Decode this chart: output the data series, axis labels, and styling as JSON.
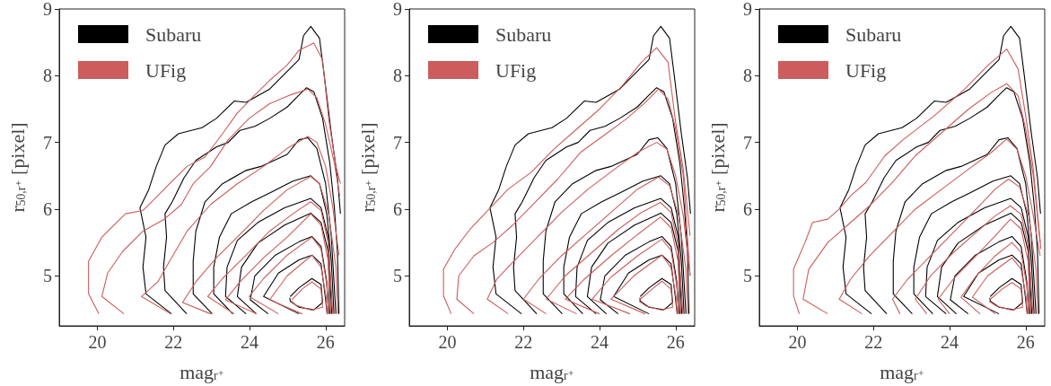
{
  "chart_data": [
    {
      "type": "line",
      "xlabel": "mag$_{r⁺}$",
      "ylabel": "r$_{50,r⁺}$ [pixel]",
      "xlim": [
        19,
        26.5
      ],
      "ylim": [
        4.25,
        9
      ],
      "xticks": [
        20,
        22,
        24,
        26
      ],
      "yticks": [
        5,
        6,
        7,
        8,
        9
      ],
      "grid": false,
      "legend": "top left",
      "series": [
        {
          "type": "line",
          "name": "Subaru",
          "color": "#000000",
          "x": [
            21.95,
            21.28,
            21.2,
            21.28,
            21.12,
            21.35,
            21.55,
            21.78,
            22.13,
            22.75,
            23.13,
            23.6,
            23.91,
            24.53,
            24.91,
            25.3,
            25.42,
            25.61,
            25.84,
            25.96,
            26.15,
            26.31,
            26.39
          ],
          "values": [
            4.43,
            4.73,
            5.13,
            5.58,
            6.02,
            6.29,
            6.64,
            6.96,
            7.13,
            7.22,
            7.36,
            7.62,
            7.6,
            7.8,
            8.02,
            8.24,
            8.6,
            8.74,
            8.56,
            8.02,
            7.13,
            6.47,
            5.93
          ]
        },
        {
          "type": "line",
          "color": "#000000",
          "x": [
            22.35,
            21.78,
            21.74,
            21.82,
            21.78,
            21.97,
            22.28,
            22.59,
            23.13,
            23.44,
            23.75,
            24.14,
            24.53,
            24.99,
            25.3,
            25.5,
            25.69,
            25.92,
            26.11,
            26.23,
            26.31,
            26.35
          ],
          "values": [
            4.43,
            4.78,
            5.13,
            5.58,
            5.93,
            6.11,
            6.47,
            6.73,
            6.93,
            7.0,
            7.18,
            7.24,
            7.36,
            7.53,
            7.71,
            7.82,
            7.76,
            7.36,
            6.69,
            6.02,
            5.36,
            4.43
          ]
        },
        {
          "type": "line",
          "color": "#000000",
          "x": [
            23.02,
            22.52,
            22.52,
            22.59,
            22.83,
            23.29,
            23.91,
            24.3,
            24.99,
            25.3,
            25.53,
            25.77,
            26.0,
            26.15,
            26.27
          ],
          "values": [
            4.43,
            4.73,
            5.22,
            5.67,
            6.11,
            6.38,
            6.58,
            6.64,
            6.82,
            7.04,
            7.07,
            6.91,
            6.38,
            5.58,
            4.43
          ]
        },
        {
          "type": "line",
          "color": "#000000",
          "x": [
            23.56,
            23.06,
            23.06,
            23.21,
            23.52,
            24.06,
            24.53,
            25.14,
            25.61,
            25.84,
            26.03,
            26.15,
            26.22
          ],
          "values": [
            4.43,
            4.73,
            5.13,
            5.58,
            5.93,
            6.11,
            6.24,
            6.42,
            6.5,
            6.38,
            5.93,
            5.22,
            4.43
          ]
        },
        {
          "type": "line",
          "color": "#000000",
          "x": [
            23.91,
            23.37,
            23.41,
            23.68,
            24.22,
            24.92,
            25.61,
            25.88,
            26.07,
            26.16
          ],
          "values": [
            4.43,
            4.69,
            5.13,
            5.53,
            5.8,
            6.02,
            6.16,
            6.02,
            5.58,
            4.43
          ]
        },
        {
          "type": "line",
          "color": "#000000",
          "x": [
            24.18,
            23.68,
            23.79,
            24.22,
            24.92,
            25.61,
            25.88,
            26.07,
            26.11
          ],
          "values": [
            4.43,
            4.69,
            5.13,
            5.49,
            5.76,
            5.94,
            5.8,
            5.36,
            4.43
          ]
        },
        {
          "type": "line",
          "color": "#000000",
          "x": [
            24.49,
            24.02,
            24.14,
            24.68,
            25.3,
            25.64,
            25.88,
            26.03,
            26.08
          ],
          "values": [
            4.43,
            4.64,
            5.0,
            5.31,
            5.51,
            5.59,
            5.44,
            4.91,
            4.43
          ]
        },
        {
          "type": "line",
          "color": "#000000",
          "x": [
            25.3,
            24.37,
            24.76,
            25.3,
            25.64,
            25.88,
            25.99,
            26.04
          ],
          "values": [
            4.43,
            4.69,
            5.04,
            5.24,
            5.31,
            5.18,
            4.69,
            4.43
          ]
        },
        {
          "type": "line",
          "color": "#000000",
          "x": [
            25.07,
            25.3,
            25.64,
            25.88,
            25.92,
            25.69,
            25.3,
            25.07,
            25.06
          ],
          "values": [
            4.69,
            4.82,
            4.96,
            4.87,
            4.6,
            4.49,
            4.53,
            4.62,
            4.67
          ]
        },
        {
          "type": "line",
          "name": "UFig",
          "color": "#cd5c5c",
          "x": [
            20.04,
            19.77,
            19.77,
            20.12,
            20.58,
            20.74,
            21.2,
            21.43,
            21.9,
            22.36,
            22.83,
            23.29,
            23.68,
            24.14,
            24.53,
            24.99,
            25.3,
            25.69,
            25.92,
            26.08,
            26.27,
            26.39
          ],
          "values": [
            4.43,
            4.73,
            5.22,
            5.58,
            5.84,
            5.93,
            5.98,
            6.11,
            6.38,
            6.64,
            6.78,
            7.13,
            7.44,
            7.71,
            7.93,
            8.16,
            8.38,
            8.49,
            8.24,
            7.36,
            6.64,
            6.38
          ]
        },
        {
          "type": "line",
          "color": "#cd5c5c",
          "x": [
            20.7,
            20.12,
            20.27,
            20.66,
            21.2,
            21.74,
            22.21,
            22.52,
            22.98,
            23.44,
            23.99,
            24.53,
            25.07,
            25.53,
            25.77,
            26.0,
            26.23,
            26.37
          ],
          "values": [
            4.43,
            4.69,
            5.04,
            5.36,
            5.67,
            5.84,
            6.07,
            6.38,
            6.64,
            7.04,
            7.36,
            7.58,
            7.71,
            7.8,
            7.67,
            7.27,
            6.69,
            6.2
          ]
        },
        {
          "type": "line",
          "color": "#cd5c5c",
          "x": [
            21.93,
            21.16,
            21.59,
            21.9,
            22.36,
            22.98,
            23.68,
            24.37,
            24.99,
            25.53,
            25.77,
            26.0,
            26.19,
            26.35
          ],
          "values": [
            4.43,
            4.69,
            4.91,
            5.22,
            5.67,
            6.07,
            6.38,
            6.64,
            6.91,
            7.09,
            7.0,
            6.64,
            6.02,
            5.31
          ]
        },
        {
          "type": "line",
          "color": "#cd5c5c",
          "x": [
            22.98,
            22.24,
            22.59,
            23.13,
            23.75,
            24.37,
            24.99,
            25.61,
            25.84,
            26.08,
            26.27,
            26.32
          ],
          "values": [
            4.43,
            4.6,
            4.91,
            5.27,
            5.62,
            5.98,
            6.29,
            6.49,
            6.38,
            5.93,
            5.13,
            4.43
          ]
        },
        {
          "type": "line",
          "color": "#cd5c5c",
          "x": [
            23.6,
            22.9,
            23.29,
            23.91,
            24.53,
            25.14,
            25.61,
            25.88,
            26.07,
            26.19
          ],
          "values": [
            4.43,
            4.69,
            4.96,
            5.31,
            5.67,
            5.93,
            6.11,
            5.98,
            5.49,
            4.43
          ]
        },
        {
          "type": "line",
          "color": "#cd5c5c",
          "x": [
            24.18,
            23.37,
            23.75,
            24.37,
            24.99,
            25.61,
            25.88,
            26.07,
            26.13
          ],
          "values": [
            4.43,
            4.64,
            4.91,
            5.27,
            5.58,
            5.93,
            5.76,
            5.22,
            4.43
          ]
        },
        {
          "type": "line",
          "color": "#cd5c5c",
          "x": [
            24.76,
            23.99,
            24.37,
            24.99,
            25.64,
            25.88,
            26.03,
            26.08
          ],
          "values": [
            4.43,
            4.69,
            4.96,
            5.31,
            5.58,
            5.4,
            4.87,
            4.43
          ]
        },
        {
          "type": "line",
          "color": "#cd5c5c",
          "x": [
            25.38,
            24.53,
            24.99,
            25.64,
            25.88,
            26.01,
            26.04
          ],
          "values": [
            4.43,
            4.64,
            5.0,
            5.31,
            5.13,
            4.69,
            4.43
          ]
        },
        {
          "type": "line",
          "color": "#cd5c5c",
          "x": [
            25.11,
            25.38,
            25.64,
            25.88,
            25.92,
            25.61,
            25.22,
            25.1
          ],
          "values": [
            4.64,
            4.8,
            4.91,
            4.8,
            4.53,
            4.49,
            4.56,
            4.62
          ]
        }
      ]
    },
    {
      "type": "line",
      "xlabel": "mag$_{r⁺}$",
      "ylabel": "r$_{50,r⁺}$ [pixel]",
      "xlim": [
        19,
        26.5
      ],
      "ylim": [
        4.25,
        9
      ],
      "xticks": [
        20,
        22,
        24,
        26
      ],
      "yticks": [
        5,
        6,
        7,
        8,
        9
      ],
      "grid": false,
      "legend": "top left",
      "series": [
        {
          "type": "line",
          "name": "Subaru",
          "color": "#000000",
          "x": [
            21.95,
            21.28,
            21.2,
            21.28,
            21.12,
            21.35,
            21.55,
            21.78,
            22.13,
            22.75,
            23.13,
            23.6,
            23.91,
            24.53,
            24.91,
            25.3,
            25.42,
            25.61,
            25.84,
            25.96,
            26.15,
            26.31,
            26.39
          ],
          "values": [
            4.43,
            4.73,
            5.13,
            5.58,
            6.02,
            6.29,
            6.64,
            6.96,
            7.13,
            7.22,
            7.36,
            7.62,
            7.6,
            7.8,
            8.02,
            8.24,
            8.6,
            8.74,
            8.56,
            8.02,
            7.13,
            6.47,
            5.93
          ]
        },
        {
          "type": "line",
          "color": "#000000",
          "x": [
            22.35,
            21.78,
            21.74,
            21.82,
            21.78,
            21.97,
            22.28,
            22.59,
            23.13,
            23.44,
            23.75,
            24.14,
            24.53,
            24.99,
            25.3,
            25.5,
            25.69,
            25.92,
            26.11,
            26.23,
            26.31,
            26.35
          ],
          "values": [
            4.43,
            4.78,
            5.13,
            5.58,
            5.93,
            6.11,
            6.47,
            6.73,
            6.93,
            7.0,
            7.18,
            7.24,
            7.36,
            7.53,
            7.71,
            7.82,
            7.76,
            7.36,
            6.69,
            6.02,
            5.36,
            4.43
          ]
        },
        {
          "type": "line",
          "color": "#000000",
          "x": [
            23.02,
            22.52,
            22.52,
            22.59,
            22.83,
            23.29,
            23.91,
            24.3,
            24.99,
            25.3,
            25.53,
            25.77,
            26.0,
            26.15,
            26.27
          ],
          "values": [
            4.43,
            4.73,
            5.22,
            5.67,
            6.11,
            6.38,
            6.58,
            6.64,
            6.82,
            7.04,
            7.07,
            6.91,
            6.38,
            5.58,
            4.43
          ]
        },
        {
          "type": "line",
          "color": "#000000",
          "x": [
            23.56,
            23.06,
            23.06,
            23.21,
            23.52,
            24.06,
            24.53,
            25.14,
            25.61,
            25.84,
            26.03,
            26.15,
            26.22
          ],
          "values": [
            4.43,
            4.73,
            5.13,
            5.58,
            5.93,
            6.11,
            6.24,
            6.42,
            6.5,
            6.38,
            5.93,
            5.22,
            4.43
          ]
        },
        {
          "type": "line",
          "color": "#000000",
          "x": [
            23.91,
            23.37,
            23.41,
            23.68,
            24.22,
            24.92,
            25.61,
            25.88,
            26.07,
            26.16
          ],
          "values": [
            4.43,
            4.69,
            5.13,
            5.53,
            5.8,
            6.02,
            6.16,
            6.02,
            5.58,
            4.43
          ]
        },
        {
          "type": "line",
          "color": "#000000",
          "x": [
            24.18,
            23.68,
            23.79,
            24.22,
            24.92,
            25.61,
            25.88,
            26.07,
            26.11
          ],
          "values": [
            4.43,
            4.69,
            5.13,
            5.49,
            5.76,
            5.94,
            5.8,
            5.36,
            4.43
          ]
        },
        {
          "type": "line",
          "color": "#000000",
          "x": [
            24.49,
            24.02,
            24.14,
            24.68,
            25.3,
            25.64,
            25.88,
            26.03,
            26.08
          ],
          "values": [
            4.43,
            4.64,
            5.0,
            5.31,
            5.51,
            5.59,
            5.44,
            4.91,
            4.43
          ]
        },
        {
          "type": "line",
          "color": "#000000",
          "x": [
            25.3,
            24.37,
            24.76,
            25.3,
            25.64,
            25.88,
            25.99,
            26.04
          ],
          "values": [
            4.43,
            4.69,
            5.04,
            5.24,
            5.31,
            5.18,
            4.69,
            4.43
          ]
        },
        {
          "type": "line",
          "color": "#000000",
          "x": [
            25.07,
            25.3,
            25.64,
            25.88,
            25.92,
            25.69,
            25.3,
            25.07,
            25.06
          ],
          "values": [
            4.69,
            4.82,
            4.96,
            4.87,
            4.6,
            4.49,
            4.53,
            4.62,
            4.67
          ]
        },
        {
          "type": "line",
          "name": "UFig",
          "color": "#cd5c5c",
          "x": [
            20.1,
            19.9,
            19.9,
            20.2,
            20.6,
            21.1,
            21.6,
            22.2,
            22.8,
            23.4,
            24.0,
            24.6,
            25.1,
            25.5,
            25.8,
            26.0,
            26.2,
            26.38
          ],
          "values": [
            4.43,
            4.7,
            5.1,
            5.4,
            5.7,
            6.0,
            6.3,
            6.55,
            6.9,
            7.2,
            7.5,
            7.85,
            8.2,
            8.42,
            8.2,
            7.3,
            6.6,
            5.6
          ]
        },
        {
          "type": "line",
          "color": "#cd5c5c",
          "x": [
            20.7,
            20.25,
            20.3,
            20.7,
            21.2,
            21.7,
            22.3,
            22.9,
            23.5,
            24.1,
            24.7,
            25.2,
            25.55,
            25.8,
            26.0,
            26.2,
            26.38
          ],
          "values": [
            4.43,
            4.65,
            5.0,
            5.3,
            5.5,
            5.75,
            6.1,
            6.45,
            6.85,
            7.1,
            7.35,
            7.6,
            7.8,
            7.65,
            7.2,
            6.5,
            5.0
          ]
        },
        {
          "type": "line",
          "color": "#cd5c5c",
          "x": [
            21.6,
            21.05,
            21.3,
            21.8,
            22.4,
            23.0,
            23.7,
            24.4,
            25.0,
            25.5,
            25.77,
            26.0,
            26.2,
            26.38
          ],
          "values": [
            4.43,
            4.65,
            4.95,
            5.25,
            5.6,
            5.95,
            6.3,
            6.6,
            6.85,
            7.0,
            6.9,
            6.5,
            5.9,
            5.0
          ]
        },
        {
          "type": "line",
          "color": "#cd5c5c",
          "x": [
            22.6,
            22.0,
            22.4,
            23.0,
            23.7,
            24.4,
            25.0,
            25.55,
            25.84,
            26.08,
            26.27,
            26.32
          ],
          "values": [
            4.43,
            4.65,
            4.95,
            5.3,
            5.65,
            6.0,
            6.3,
            6.48,
            6.35,
            5.9,
            5.1,
            4.43
          ]
        },
        {
          "type": "line",
          "color": "#cd5c5c",
          "x": [
            23.4,
            22.6,
            23.1,
            23.8,
            24.5,
            25.1,
            25.6,
            25.88,
            26.07,
            26.19
          ],
          "values": [
            4.43,
            4.65,
            5.0,
            5.35,
            5.7,
            5.95,
            6.1,
            5.95,
            5.45,
            4.43
          ]
        },
        {
          "type": "line",
          "color": "#cd5c5c",
          "x": [
            24.0,
            23.1,
            23.6,
            24.3,
            25.0,
            25.6,
            25.88,
            26.07,
            26.13
          ],
          "values": [
            4.43,
            4.65,
            4.95,
            5.3,
            5.62,
            5.88,
            5.72,
            5.2,
            4.43
          ]
        },
        {
          "type": "line",
          "color": "#cd5c5c",
          "x": [
            24.8,
            23.8,
            24.3,
            25.0,
            25.64,
            25.88,
            26.03,
            26.08
          ],
          "values": [
            4.43,
            4.65,
            4.98,
            5.3,
            5.55,
            5.38,
            4.85,
            4.43
          ]
        },
        {
          "type": "line",
          "color": "#cd5c5c",
          "x": [
            25.2,
            24.3,
            24.9,
            25.64,
            25.88,
            26.01,
            26.04
          ],
          "values": [
            4.43,
            4.65,
            5.0,
            5.31,
            5.12,
            4.68,
            4.43
          ]
        },
        {
          "type": "line",
          "color": "#cd5c5c",
          "x": [
            25.05,
            25.38,
            25.64,
            25.88,
            25.92,
            25.61,
            25.22,
            25.04
          ],
          "values": [
            4.64,
            4.8,
            4.92,
            4.8,
            4.53,
            4.49,
            4.55,
            4.62
          ]
        }
      ]
    },
    {
      "type": "line",
      "xlabel": "mag$_{r⁺}$",
      "ylabel": "r$_{50,r⁺}$ [pixel]",
      "xlim": [
        19,
        26.5
      ],
      "ylim": [
        4.25,
        9
      ],
      "xticks": [
        20,
        22,
        24,
        26
      ],
      "yticks": [
        5,
        6,
        7,
        8,
        9
      ],
      "grid": false,
      "legend": "top left",
      "series": [
        {
          "type": "line",
          "name": "Subaru",
          "color": "#000000",
          "x": [
            21.95,
            21.28,
            21.2,
            21.28,
            21.12,
            21.35,
            21.55,
            21.78,
            22.13,
            22.75,
            23.13,
            23.6,
            23.91,
            24.53,
            24.91,
            25.3,
            25.42,
            25.61,
            25.84,
            25.96,
            26.15,
            26.31,
            26.39
          ],
          "values": [
            4.43,
            4.73,
            5.13,
            5.58,
            6.02,
            6.29,
            6.64,
            6.96,
            7.13,
            7.22,
            7.36,
            7.62,
            7.6,
            7.8,
            8.02,
            8.24,
            8.6,
            8.74,
            8.56,
            8.02,
            7.13,
            6.47,
            5.93
          ]
        },
        {
          "type": "line",
          "color": "#000000",
          "x": [
            22.35,
            21.78,
            21.74,
            21.82,
            21.78,
            21.97,
            22.28,
            22.59,
            23.13,
            23.44,
            23.75,
            24.14,
            24.53,
            24.99,
            25.3,
            25.5,
            25.69,
            25.92,
            26.11,
            26.23,
            26.31,
            26.35
          ],
          "values": [
            4.43,
            4.78,
            5.13,
            5.58,
            5.93,
            6.11,
            6.47,
            6.73,
            6.93,
            7.0,
            7.18,
            7.24,
            7.36,
            7.53,
            7.71,
            7.82,
            7.76,
            7.36,
            6.69,
            6.02,
            5.36,
            4.43
          ]
        },
        {
          "type": "line",
          "color": "#000000",
          "x": [
            23.02,
            22.52,
            22.52,
            22.59,
            22.83,
            23.29,
            23.91,
            24.3,
            24.99,
            25.3,
            25.53,
            25.77,
            26.0,
            26.15,
            26.27
          ],
          "values": [
            4.43,
            4.73,
            5.22,
            5.67,
            6.11,
            6.38,
            6.58,
            6.64,
            6.82,
            7.04,
            7.07,
            6.91,
            6.38,
            5.58,
            4.43
          ]
        },
        {
          "type": "line",
          "color": "#000000",
          "x": [
            23.56,
            23.06,
            23.06,
            23.21,
            23.52,
            24.06,
            24.53,
            25.14,
            25.61,
            25.84,
            26.03,
            26.15,
            26.22
          ],
          "values": [
            4.43,
            4.73,
            5.13,
            5.58,
            5.93,
            6.11,
            6.24,
            6.42,
            6.5,
            6.38,
            5.93,
            5.22,
            4.43
          ]
        },
        {
          "type": "line",
          "color": "#000000",
          "x": [
            23.91,
            23.37,
            23.41,
            23.68,
            24.22,
            24.92,
            25.61,
            25.88,
            26.07,
            26.16
          ],
          "values": [
            4.43,
            4.69,
            5.13,
            5.53,
            5.8,
            6.02,
            6.16,
            6.02,
            5.58,
            4.43
          ]
        },
        {
          "type": "line",
          "color": "#000000",
          "x": [
            24.18,
            23.68,
            23.79,
            24.22,
            24.92,
            25.61,
            25.88,
            26.07,
            26.11
          ],
          "values": [
            4.43,
            4.69,
            5.13,
            5.49,
            5.76,
            5.94,
            5.8,
            5.36,
            4.43
          ]
        },
        {
          "type": "line",
          "color": "#000000",
          "x": [
            24.49,
            24.02,
            24.14,
            24.68,
            25.3,
            25.64,
            25.88,
            26.03,
            26.08
          ],
          "values": [
            4.43,
            4.64,
            5.0,
            5.31,
            5.51,
            5.59,
            5.44,
            4.91,
            4.43
          ]
        },
        {
          "type": "line",
          "color": "#000000",
          "x": [
            25.3,
            24.37,
            24.76,
            25.3,
            25.64,
            25.88,
            25.99,
            26.04
          ],
          "values": [
            4.43,
            4.69,
            5.04,
            5.24,
            5.31,
            5.18,
            4.69,
            4.43
          ]
        },
        {
          "type": "line",
          "color": "#000000",
          "x": [
            25.07,
            25.3,
            25.64,
            25.88,
            25.92,
            25.69,
            25.3,
            25.07,
            25.06
          ],
          "values": [
            4.69,
            4.82,
            4.96,
            4.87,
            4.6,
            4.49,
            4.53,
            4.62,
            4.67
          ]
        },
        {
          "type": "line",
          "name": "UFig",
          "color": "#cd5c5c",
          "x": [
            20.05,
            19.9,
            19.9,
            20.2,
            20.4,
            20.8,
            21.1,
            21.4,
            21.8,
            22.3,
            22.8,
            23.6,
            24.4,
            25.0,
            25.5,
            25.8,
            26.0,
            26.2,
            26.4
          ],
          "values": [
            4.43,
            4.7,
            5.1,
            5.5,
            5.8,
            5.85,
            6.0,
            6.2,
            6.4,
            6.8,
            7.05,
            7.4,
            7.8,
            8.15,
            8.4,
            8.1,
            7.4,
            6.6,
            5.4
          ]
        },
        {
          "type": "line",
          "color": "#cd5c5c",
          "x": [
            20.8,
            20.15,
            20.3,
            20.8,
            21.3,
            21.9,
            22.5,
            23.1,
            23.8,
            24.5,
            25.1,
            25.5,
            25.8,
            26.0,
            26.2,
            26.38
          ],
          "values": [
            4.43,
            4.65,
            5.1,
            5.5,
            5.75,
            6.05,
            6.4,
            6.8,
            7.15,
            7.5,
            7.75,
            7.88,
            7.7,
            7.2,
            6.5,
            5.5
          ]
        },
        {
          "type": "line",
          "color": "#cd5c5c",
          "x": [
            21.7,
            21.1,
            21.4,
            21.9,
            22.5,
            23.1,
            23.8,
            24.5,
            25.1,
            25.5,
            25.77,
            26.0,
            26.2,
            26.38
          ],
          "values": [
            4.43,
            4.65,
            4.95,
            5.3,
            5.65,
            6.0,
            6.3,
            6.6,
            6.85,
            7.05,
            6.9,
            6.5,
            5.9,
            5.3
          ]
        },
        {
          "type": "line",
          "color": "#cd5c5c",
          "x": [
            22.7,
            22.5,
            22.9,
            23.5,
            24.1,
            24.7,
            25.2,
            25.55,
            25.84,
            26.08,
            26.27,
            26.32
          ],
          "values": [
            4.43,
            4.65,
            4.95,
            5.3,
            5.65,
            6.0,
            6.3,
            6.45,
            6.33,
            5.9,
            5.1,
            4.43
          ]
        },
        {
          "type": "line",
          "color": "#cd5c5c",
          "x": [
            23.4,
            23.1,
            23.5,
            24.1,
            24.7,
            25.2,
            25.6,
            25.88,
            26.07,
            26.19
          ],
          "values": [
            4.43,
            4.65,
            5.0,
            5.35,
            5.65,
            5.9,
            6.05,
            5.92,
            5.45,
            4.43
          ]
        },
        {
          "type": "line",
          "color": "#cd5c5c",
          "x": [
            24.0,
            23.7,
            24.1,
            24.7,
            25.2,
            25.6,
            25.88,
            26.07,
            26.13
          ],
          "values": [
            4.43,
            4.65,
            4.95,
            5.3,
            5.6,
            5.85,
            5.7,
            5.2,
            4.43
          ]
        },
        {
          "type": "line",
          "color": "#cd5c5c",
          "x": [
            24.8,
            24.3,
            24.7,
            25.2,
            25.64,
            25.88,
            26.03,
            26.08
          ],
          "values": [
            4.43,
            4.68,
            5.0,
            5.3,
            5.5,
            5.35,
            4.85,
            4.43
          ]
        },
        {
          "type": "line",
          "color": "#cd5c5c",
          "x": [
            25.2,
            24.6,
            25.0,
            25.64,
            25.88,
            26.01,
            26.04
          ],
          "values": [
            4.43,
            4.68,
            5.0,
            5.27,
            5.1,
            4.68,
            4.43
          ]
        },
        {
          "type": "line",
          "color": "#cd5c5c",
          "x": [
            25.05,
            25.38,
            25.64,
            25.88,
            25.92,
            25.61,
            25.22,
            25.04
          ],
          "values": [
            4.64,
            4.8,
            4.9,
            4.8,
            4.53,
            4.49,
            4.55,
            4.62
          ]
        }
      ]
    }
  ]
}
